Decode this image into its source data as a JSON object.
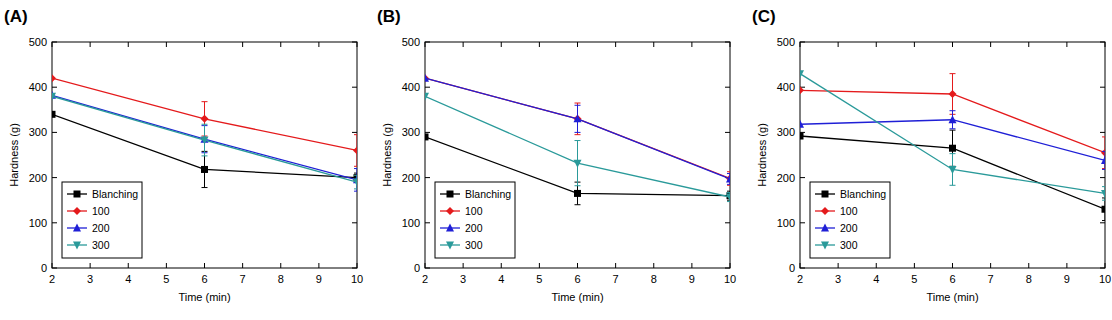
{
  "chart_data": [
    {
      "type": "line",
      "title": "(A)",
      "x_label": "Time (min)",
      "y_label": "Hardness (g)",
      "x": [
        2,
        6,
        10
      ],
      "xlim": [
        2,
        10
      ],
      "xticks": [
        2,
        3,
        4,
        5,
        6,
        7,
        8,
        9,
        10
      ],
      "ylim": [
        0,
        500
      ],
      "yticks": [
        0,
        100,
        200,
        300,
        400,
        500
      ],
      "legend": "lower left",
      "series": [
        {
          "name": "Blanching",
          "color": "#000000",
          "marker": "square",
          "values": [
            340,
            218,
            200
          ],
          "errors": [
            null,
            40,
            10
          ]
        },
        {
          "name": "100",
          "color": "#e41a1c",
          "marker": "diamond",
          "values": [
            420,
            330,
            260
          ],
          "errors": [
            null,
            38,
            35
          ]
        },
        {
          "name": "200",
          "color": "#1f1fd6",
          "marker": "triangle",
          "values": [
            382,
            285,
            195
          ],
          "errors": [
            null,
            30,
            25
          ]
        },
        {
          "name": "300",
          "color": "#2a9a9a",
          "marker": "triangle-down",
          "values": [
            380,
            283,
            190
          ],
          "errors": [
            null,
            35,
            15
          ]
        }
      ]
    },
    {
      "type": "line",
      "title": "(B)",
      "x_label": "Time (min)",
      "y_label": "Hardness (g)",
      "x": [
        2,
        6,
        10
      ],
      "xlim": [
        2,
        10
      ],
      "xticks": [
        2,
        3,
        4,
        5,
        6,
        7,
        8,
        9,
        10
      ],
      "ylim": [
        0,
        500
      ],
      "yticks": [
        0,
        100,
        200,
        300,
        400,
        500
      ],
      "legend": "lower left",
      "series": [
        {
          "name": "Blanching",
          "color": "#000000",
          "marker": "square",
          "values": [
            290,
            165,
            160
          ],
          "errors": [
            null,
            25,
            10
          ]
        },
        {
          "name": "100",
          "color": "#e41a1c",
          "marker": "diamond",
          "values": [
            420,
            330,
            198
          ],
          "errors": [
            null,
            35,
            15
          ]
        },
        {
          "name": "200",
          "color": "#1f1fd6",
          "marker": "triangle",
          "values": [
            420,
            330,
            197
          ],
          "errors": [
            null,
            30,
            12
          ]
        },
        {
          "name": "300",
          "color": "#2a9a9a",
          "marker": "triangle-down",
          "values": [
            380,
            232,
            157
          ],
          "errors": [
            null,
            50,
            10
          ]
        }
      ]
    },
    {
      "type": "line",
      "title": "(C)",
      "x_label": "Time (min)",
      "y_label": "Hardness (g)",
      "x": [
        2,
        6,
        10
      ],
      "xlim": [
        2,
        10
      ],
      "xticks": [
        2,
        3,
        4,
        5,
        6,
        7,
        8,
        9,
        10
      ],
      "ylim": [
        0,
        500
      ],
      "yticks": [
        0,
        100,
        200,
        300,
        400,
        500
      ],
      "legend": "lower left",
      "series": [
        {
          "name": "Blanching",
          "color": "#000000",
          "marker": "square",
          "values": [
            292,
            265,
            130
          ],
          "errors": [
            null,
            40,
            25
          ]
        },
        {
          "name": "100",
          "color": "#e41a1c",
          "marker": "diamond",
          "values": [
            393,
            385,
            255
          ],
          "errors": [
            null,
            45,
            35
          ]
        },
        {
          "name": "200",
          "color": "#1f1fd6",
          "marker": "triangle",
          "values": [
            318,
            328,
            238
          ],
          "errors": [
            null,
            20,
            20
          ]
        },
        {
          "name": "300",
          "color": "#2a9a9a",
          "marker": "triangle-down",
          "values": [
            430,
            218,
            165
          ],
          "errors": [
            null,
            35,
            15
          ]
        }
      ]
    }
  ]
}
